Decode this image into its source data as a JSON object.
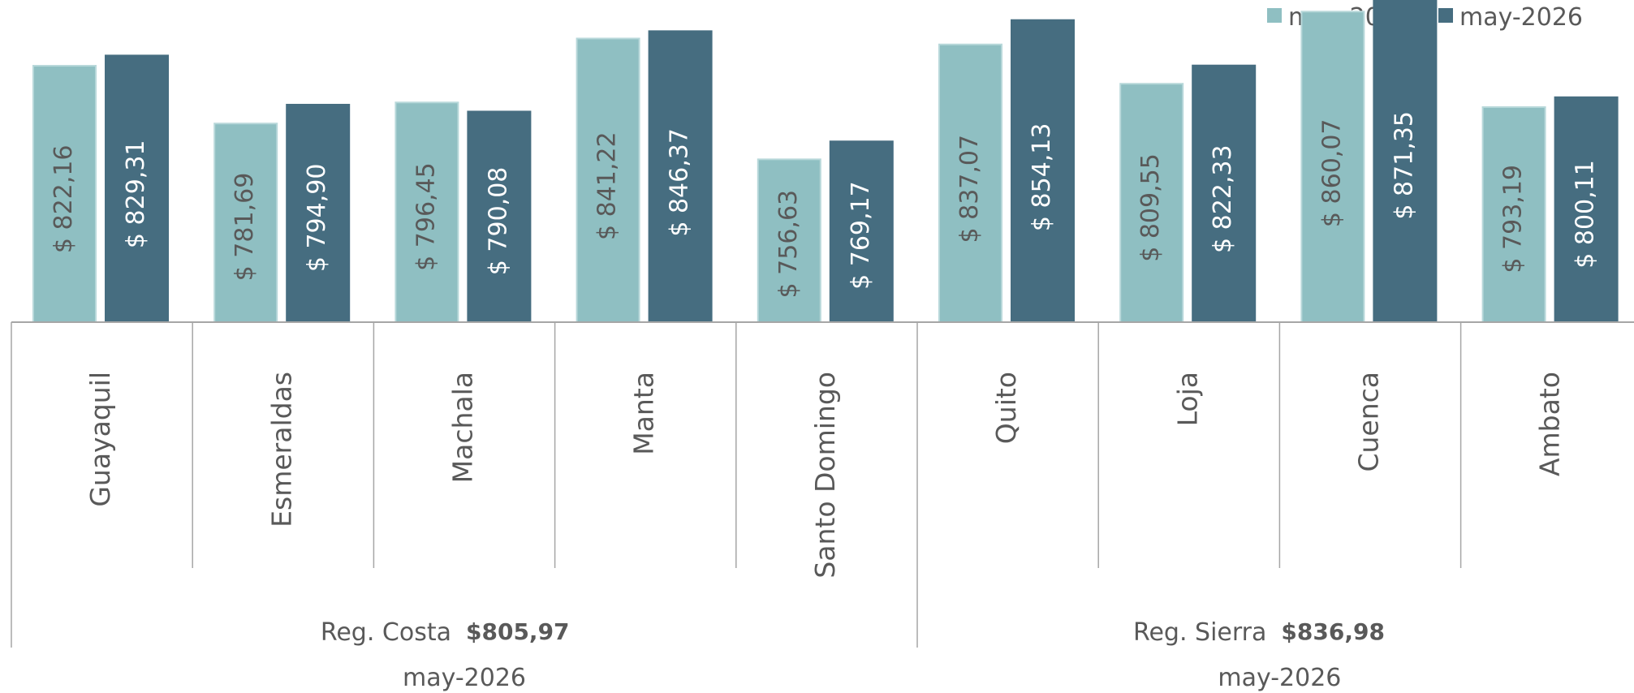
{
  "chart_data": {
    "type": "bar",
    "series": [
      {
        "name": "may-2025",
        "color": "#8fbfc2",
        "values": [
          822.16,
          781.69,
          796.45,
          841.22,
          756.63,
          837.07,
          809.55,
          860.07,
          793.19
        ],
        "labels": [
          "$ 822,16",
          "$ 781,69",
          "$ 796,45",
          "$ 841,22",
          "$ 756,63",
          "$ 837,07",
          "$ 809,55",
          "$ 860,07",
          "$ 793,19"
        ],
        "label_color": "#595959"
      },
      {
        "name": "may-2026",
        "color": "#466d80",
        "values": [
          829.31,
          794.9,
          790.08,
          846.37,
          769.17,
          854.13,
          822.33,
          871.35,
          800.11
        ],
        "labels": [
          "$ 829,31",
          "$ 794,90",
          "$ 790,08",
          "$ 846,37",
          "$ 769,17",
          "$ 854,13",
          "$ 822,33",
          "$ 871,35",
          "$ 800,11"
        ],
        "label_color": "#ffffff"
      }
    ],
    "categories": [
      "Guayaquil",
      "Esmeraldas",
      "Machala",
      "Manta",
      "Santo Domingo",
      "Quito",
      "Loja",
      "Cuenca",
      "Ambato"
    ],
    "groups": [
      {
        "name": "Reg. Costa",
        "value": "$805,97",
        "period": "may-2026",
        "count": 5
      },
      {
        "name": "Reg. Sierra",
        "value": "$836,98",
        "period": "may-2026",
        "count": 4
      }
    ],
    "legend_position": "top-right",
    "grid": false
  }
}
